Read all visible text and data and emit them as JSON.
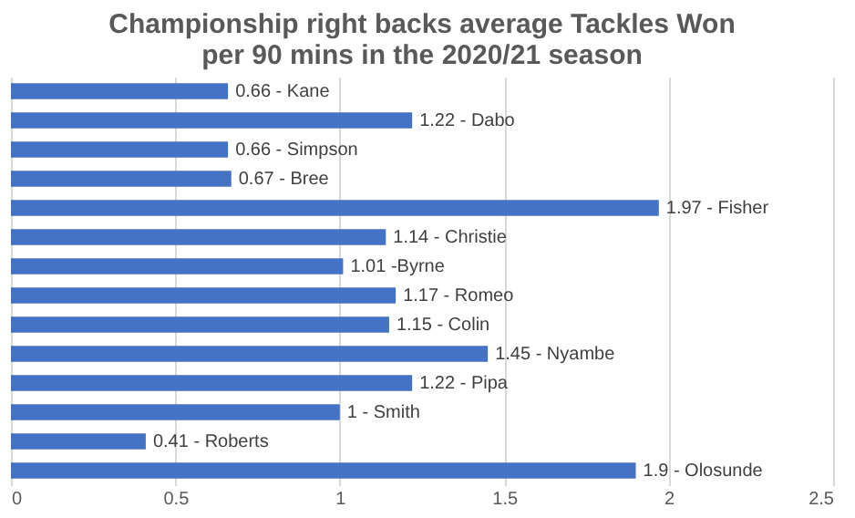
{
  "chart_data": {
    "type": "bar",
    "orientation": "horizontal",
    "title": "Championship right backs average Tackles Won per 90 mins in the 2020/21 season",
    "categories": [
      null,
      null,
      null,
      null,
      null,
      null,
      null,
      null,
      null,
      null,
      null,
      null,
      null,
      null
    ],
    "values": [
      0.66,
      1.22,
      0.66,
      0.67,
      1.97,
      1.14,
      1.01,
      1.17,
      1.15,
      1.45,
      1.22,
      1,
      0.41,
      1.9
    ],
    "value_labels": [
      "0.66 - Kane",
      "1.22 - Dabo",
      "0.66 - Simpson",
      "0.67 - Bree",
      "1.97 - Fisher",
      "1.14 - Christie",
      "1.01 -Byrne",
      "1.17 - Romeo",
      "1.15 - Colin",
      "1.45 - Nyambe",
      "1.22 - Pipa",
      "1 - Smith",
      "0.41 - Roberts",
      "1.9 - Olosunde"
    ],
    "color": "#4472c4",
    "xlim": [
      0,
      2.5
    ],
    "xticks": [
      0,
      0.5,
      1,
      1.5,
      2,
      2.5
    ],
    "grid": "x",
    "tick_labels": "x"
  }
}
